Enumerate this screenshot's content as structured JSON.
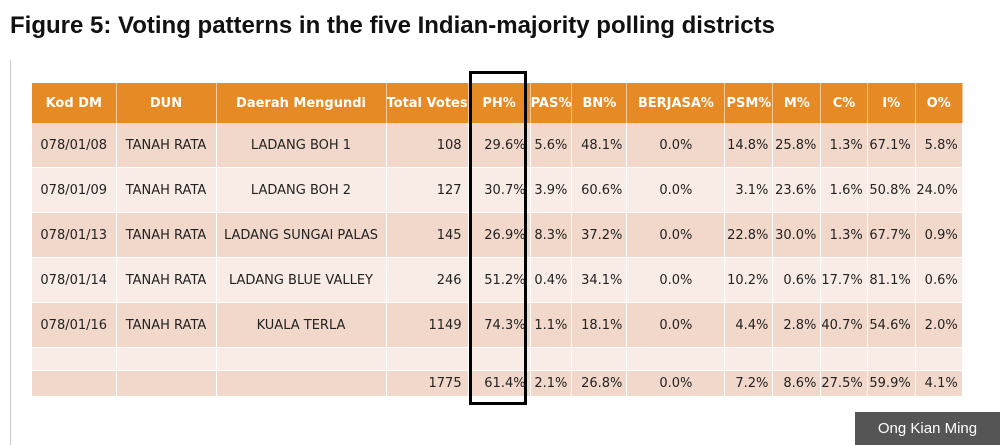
{
  "title": "Figure 5: Voting patterns in the five Indian-majority polling districts",
  "credit": "Ong Kian Ming",
  "colors": {
    "header_bg": "#e58a24",
    "row_dark": "#f2d8cb",
    "row_light": "#f9ece6",
    "highlight_border": "#000000"
  },
  "table": {
    "headers": [
      "Kod DM",
      "DUN",
      "Daerah Mengundi",
      "Total Votes",
      "PH%",
      "PAS%",
      "BN%",
      "BERJASA%",
      "PSM%",
      "M%",
      "C%",
      "I%",
      "O%"
    ],
    "rows": [
      [
        "078/01/08",
        "TANAH RATA",
        "LADANG BOH 1",
        "108",
        "29.6%",
        "5.6%",
        "48.1%",
        "0.0%",
        "14.8%",
        "25.8%",
        "1.3%",
        "67.1%",
        "5.8%"
      ],
      [
        "078/01/09",
        "TANAH RATA",
        "LADANG BOH 2",
        "127",
        "30.7%",
        "3.9%",
        "60.6%",
        "0.0%",
        "3.1%",
        "23.6%",
        "1.6%",
        "50.8%",
        "24.0%"
      ],
      [
        "078/01/13",
        "TANAH RATA",
        "LADANG SUNGAI PALAS",
        "145",
        "26.9%",
        "8.3%",
        "37.2%",
        "0.0%",
        "22.8%",
        "30.0%",
        "1.3%",
        "67.7%",
        "0.9%"
      ],
      [
        "078/01/14",
        "TANAH RATA",
        "LADANG BLUE VALLEY",
        "246",
        "51.2%",
        "0.4%",
        "34.1%",
        "0.0%",
        "10.2%",
        "0.6%",
        "17.7%",
        "81.1%",
        "0.6%"
      ],
      [
        "078/01/16",
        "TANAH RATA",
        "KUALA TERLA",
        "1149",
        "74.3%",
        "1.1%",
        "18.1%",
        "0.0%",
        "4.4%",
        "2.8%",
        "40.7%",
        "54.6%",
        "2.0%"
      ]
    ],
    "total": [
      "",
      "",
      "",
      "1775",
      "61.4%",
      "2.1%",
      "26.8%",
      "0.0%",
      "7.2%",
      "8.6%",
      "27.5%",
      "59.9%",
      "4.1%"
    ],
    "highlighted_column": "PH%"
  }
}
